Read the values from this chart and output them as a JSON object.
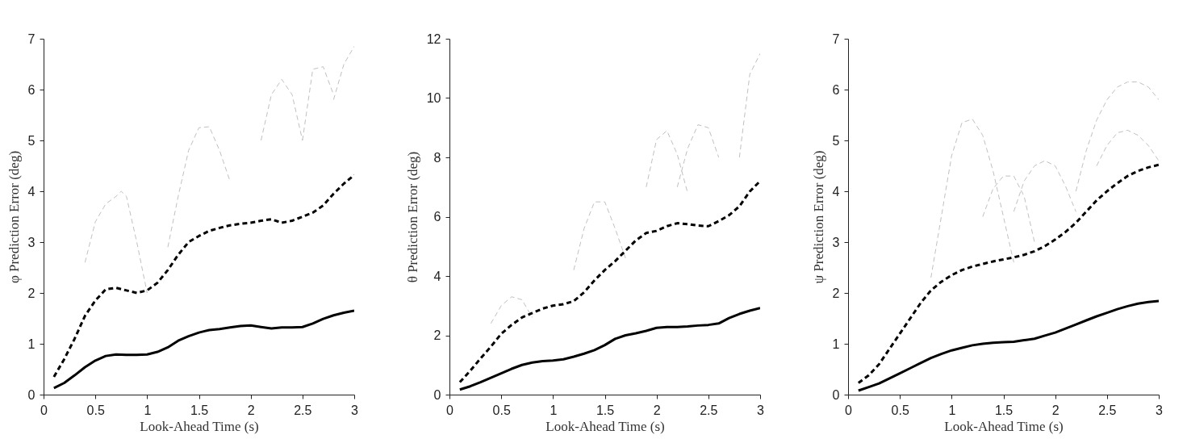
{
  "chart_data": [
    {
      "type": "line",
      "xlabel": "Look-Ahead Time (s)",
      "ylabel": "φ Prediction Error (deg)",
      "xlim": [
        0,
        3
      ],
      "xticks": [
        0,
        0.5,
        1,
        1.5,
        2,
        2.5,
        3
      ],
      "ylim": [
        0,
        7
      ],
      "yticks": [
        0,
        1,
        2,
        3,
        4,
        5,
        6,
        7
      ],
      "grid": false,
      "series": [
        {
          "color": "#c0c0c0",
          "line_style": "dashed",
          "x": [
            0.4,
            0.5,
            0.6,
            0.7,
            0.75,
            0.8,
            0.9,
            1.0
          ],
          "values": [
            2.6,
            3.4,
            3.75,
            3.9,
            4.0,
            3.9,
            3.0,
            2.0
          ]
        },
        {
          "color": "#c0c0c0",
          "line_style": "dashed",
          "x": [
            1.2,
            1.3,
            1.4,
            1.5,
            1.6,
            1.7,
            1.8
          ],
          "values": [
            2.9,
            3.9,
            4.8,
            5.25,
            5.27,
            4.8,
            4.2
          ]
        },
        {
          "color": "#c0c0c0",
          "line_style": "dashed",
          "x": [
            2.1,
            2.2,
            2.3,
            2.4,
            2.5
          ],
          "values": [
            5.0,
            5.9,
            6.2,
            5.9,
            5.0
          ]
        },
        {
          "color": "#c0c0c0",
          "line_style": "dashed",
          "x": [
            2.5,
            2.6,
            2.7,
            2.8
          ],
          "values": [
            5.0,
            6.4,
            6.45,
            5.9
          ]
        },
        {
          "color": "#c0c0c0",
          "line_style": "dashed",
          "x": [
            2.8,
            2.9,
            3.0
          ],
          "values": [
            5.8,
            6.5,
            6.85
          ]
        },
        {
          "color": "#000000",
          "line_style": "solid",
          "x": [
            0.1,
            0.2,
            0.3,
            0.4,
            0.5,
            0.6,
            0.7,
            0.8,
            0.9,
            1.0,
            1.1,
            1.2,
            1.3,
            1.4,
            1.5,
            1.6,
            1.7,
            1.8,
            1.9,
            2.0,
            2.1,
            2.2,
            2.3,
            2.4,
            2.5,
            2.6,
            2.7,
            2.8,
            2.9,
            3.0
          ],
          "values": [
            0.13,
            0.23,
            0.38,
            0.54,
            0.67,
            0.76,
            0.79,
            0.78,
            0.78,
            0.79,
            0.84,
            0.93,
            1.06,
            1.15,
            1.22,
            1.27,
            1.29,
            1.32,
            1.35,
            1.36,
            1.33,
            1.3,
            1.32,
            1.32,
            1.33,
            1.4,
            1.49,
            1.56,
            1.61,
            1.65
          ]
        },
        {
          "color": "#000000",
          "line_style": "dashed",
          "x": [
            0.1,
            0.2,
            0.3,
            0.4,
            0.5,
            0.6,
            0.7,
            0.8,
            0.9,
            1.0,
            1.1,
            1.2,
            1.3,
            1.4,
            1.5,
            1.6,
            1.7,
            1.8,
            1.9,
            2.0,
            2.1,
            2.2,
            2.3,
            2.4,
            2.5,
            2.6,
            2.7,
            2.8,
            2.9,
            3.0
          ],
          "values": [
            0.35,
            0.7,
            1.1,
            1.55,
            1.85,
            2.07,
            2.1,
            2.05,
            2.0,
            2.05,
            2.2,
            2.45,
            2.75,
            3.0,
            3.12,
            3.22,
            3.28,
            3.33,
            3.36,
            3.38,
            3.42,
            3.45,
            3.38,
            3.42,
            3.5,
            3.58,
            3.72,
            3.95,
            4.15,
            4.32
          ]
        }
      ]
    },
    {
      "type": "line",
      "xlabel": "Look-Ahead Time (s)",
      "ylabel": "θ Prediction Error (deg)",
      "xlim": [
        0,
        3
      ],
      "xticks": [
        0,
        0.5,
        1,
        1.5,
        2,
        2.5,
        3
      ],
      "ylim": [
        0,
        12
      ],
      "yticks": [
        0,
        2,
        4,
        6,
        8,
        10,
        12
      ],
      "grid": false,
      "series": [
        {
          "color": "#c0c0c0",
          "line_style": "dashed",
          "x": [
            0.4,
            0.5,
            0.6,
            0.7,
            0.8
          ],
          "values": [
            2.4,
            3.0,
            3.3,
            3.2,
            2.6
          ]
        },
        {
          "color": "#c0c0c0",
          "line_style": "dashed",
          "x": [
            1.2,
            1.3,
            1.4,
            1.5,
            1.6,
            1.7
          ],
          "values": [
            4.2,
            5.6,
            6.5,
            6.5,
            5.6,
            4.6
          ]
        },
        {
          "color": "#c0c0c0",
          "line_style": "dashed",
          "x": [
            1.9,
            2.0,
            2.1,
            2.2,
            2.3
          ],
          "values": [
            7.0,
            8.6,
            8.9,
            8.1,
            6.8
          ]
        },
        {
          "color": "#c0c0c0",
          "line_style": "dashed",
          "x": [
            2.2,
            2.3,
            2.4,
            2.5,
            2.6
          ],
          "values": [
            7.0,
            8.3,
            9.1,
            9.0,
            8.0
          ]
        },
        {
          "color": "#c0c0c0",
          "line_style": "dashed",
          "x": [
            2.8,
            2.9,
            3.0
          ],
          "values": [
            8.0,
            10.8,
            11.5
          ]
        },
        {
          "color": "#000000",
          "line_style": "solid",
          "x": [
            0.1,
            0.2,
            0.3,
            0.4,
            0.5,
            0.6,
            0.7,
            0.8,
            0.9,
            1.0,
            1.1,
            1.2,
            1.3,
            1.4,
            1.5,
            1.6,
            1.7,
            1.8,
            1.9,
            2.0,
            2.1,
            2.2,
            2.3,
            2.4,
            2.5,
            2.6,
            2.7,
            2.8,
            2.9,
            3.0
          ],
          "values": [
            0.17,
            0.28,
            0.42,
            0.57,
            0.72,
            0.87,
            1.0,
            1.08,
            1.13,
            1.15,
            1.19,
            1.28,
            1.38,
            1.5,
            1.67,
            1.88,
            2.0,
            2.07,
            2.15,
            2.25,
            2.28,
            2.28,
            2.3,
            2.33,
            2.35,
            2.4,
            2.58,
            2.72,
            2.83,
            2.92
          ]
        },
        {
          "color": "#000000",
          "line_style": "dashed",
          "x": [
            0.1,
            0.2,
            0.3,
            0.4,
            0.5,
            0.6,
            0.7,
            0.8,
            0.9,
            1.0,
            1.1,
            1.2,
            1.3,
            1.4,
            1.5,
            1.6,
            1.7,
            1.8,
            1.9,
            2.0,
            2.1,
            2.2,
            2.3,
            2.4,
            2.5,
            2.6,
            2.7,
            2.8,
            2.9,
            3.0
          ],
          "values": [
            0.42,
            0.8,
            1.22,
            1.62,
            2.05,
            2.35,
            2.6,
            2.75,
            2.9,
            3.0,
            3.05,
            3.15,
            3.45,
            3.85,
            4.2,
            4.5,
            4.85,
            5.2,
            5.45,
            5.52,
            5.68,
            5.78,
            5.75,
            5.7,
            5.68,
            5.85,
            6.05,
            6.35,
            6.85,
            7.2
          ]
        }
      ]
    },
    {
      "type": "line",
      "xlabel": "Look-Ahead Time (s)",
      "ylabel": "ψ Prediction Error (deg)",
      "xlim": [
        0,
        3
      ],
      "xticks": [
        0,
        0.5,
        1,
        1.5,
        2,
        2.5,
        3
      ],
      "ylim": [
        0,
        7
      ],
      "yticks": [
        0,
        1,
        2,
        3,
        4,
        5,
        6,
        7
      ],
      "grid": false,
      "series": [
        {
          "color": "#c0c0c0",
          "line_style": "dashed",
          "x": [
            0.8,
            0.9,
            1.0,
            1.1,
            1.2,
            1.3,
            1.4,
            1.5,
            1.6
          ],
          "values": [
            2.3,
            3.5,
            4.7,
            5.35,
            5.42,
            5.1,
            4.4,
            3.5,
            2.6
          ]
        },
        {
          "color": "#c0c0c0",
          "line_style": "dashed",
          "x": [
            1.3,
            1.4,
            1.5,
            1.6,
            1.7,
            1.8
          ],
          "values": [
            3.5,
            4.05,
            4.3,
            4.3,
            3.9,
            3.0
          ]
        },
        {
          "color": "#c0c0c0",
          "line_style": "dashed",
          "x": [
            1.6,
            1.7,
            1.8,
            1.9,
            2.0,
            2.1,
            2.2
          ],
          "values": [
            3.6,
            4.2,
            4.5,
            4.6,
            4.5,
            4.1,
            3.6
          ]
        },
        {
          "color": "#c0c0c0",
          "line_style": "dashed",
          "x": [
            2.2,
            2.3,
            2.4,
            2.5,
            2.6,
            2.7,
            2.8,
            2.9,
            3.0
          ],
          "values": [
            4.0,
            4.8,
            5.4,
            5.8,
            6.05,
            6.15,
            6.15,
            6.05,
            5.8
          ]
        },
        {
          "color": "#c0c0c0",
          "line_style": "dashed",
          "x": [
            2.4,
            2.5,
            2.6,
            2.7,
            2.8,
            2.9,
            3.0
          ],
          "values": [
            4.5,
            4.9,
            5.15,
            5.2,
            5.1,
            4.9,
            4.6
          ]
        },
        {
          "color": "#000000",
          "line_style": "solid",
          "x": [
            0.1,
            0.2,
            0.3,
            0.4,
            0.5,
            0.6,
            0.7,
            0.8,
            0.9,
            1.0,
            1.1,
            1.2,
            1.3,
            1.4,
            1.5,
            1.6,
            1.7,
            1.8,
            1.9,
            2.0,
            2.1,
            2.2,
            2.3,
            2.4,
            2.5,
            2.6,
            2.7,
            2.8,
            2.9,
            3.0
          ],
          "values": [
            0.08,
            0.15,
            0.22,
            0.32,
            0.42,
            0.52,
            0.62,
            0.72,
            0.8,
            0.87,
            0.92,
            0.97,
            1.0,
            1.02,
            1.03,
            1.04,
            1.07,
            1.1,
            1.16,
            1.22,
            1.3,
            1.38,
            1.46,
            1.54,
            1.61,
            1.68,
            1.74,
            1.79,
            1.82,
            1.84
          ]
        },
        {
          "color": "#000000",
          "line_style": "dashed",
          "x": [
            0.1,
            0.2,
            0.3,
            0.4,
            0.5,
            0.6,
            0.7,
            0.8,
            0.9,
            1.0,
            1.1,
            1.2,
            1.3,
            1.4,
            1.5,
            1.6,
            1.7,
            1.8,
            1.9,
            2.0,
            2.1,
            2.2,
            2.3,
            2.4,
            2.5,
            2.6,
            2.7,
            2.8,
            2.9,
            3.0
          ],
          "values": [
            0.23,
            0.38,
            0.6,
            0.9,
            1.2,
            1.5,
            1.8,
            2.05,
            2.22,
            2.35,
            2.45,
            2.52,
            2.57,
            2.62,
            2.66,
            2.7,
            2.75,
            2.82,
            2.92,
            3.05,
            3.2,
            3.38,
            3.6,
            3.82,
            4.0,
            4.16,
            4.3,
            4.4,
            4.47,
            4.52
          ]
        }
      ]
    }
  ]
}
